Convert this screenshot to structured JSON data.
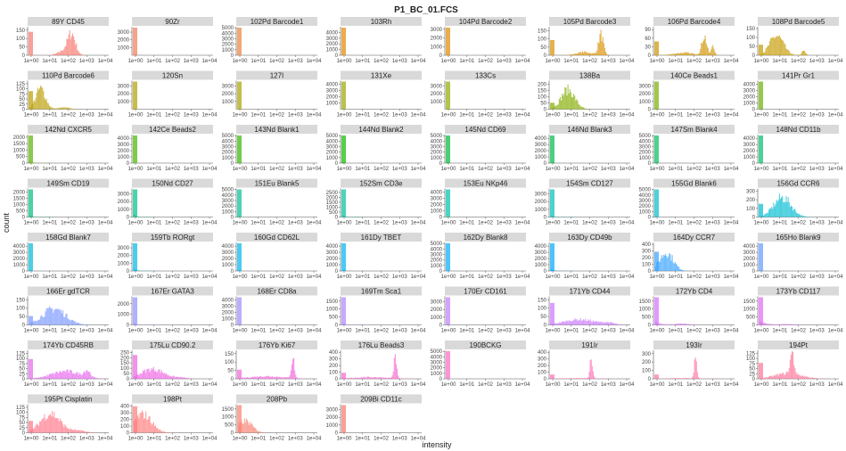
{
  "chart_data": {
    "type": "histogram-facets",
    "title": "P1_BC_01.FCS",
    "xlabel": "intensity",
    "ylabel": "count",
    "x_scale": "log10",
    "x_ticks": [
      "1e+00",
      "1e+01",
      "1e+02",
      "1e+03",
      "1e+04"
    ],
    "panels": [
      {
        "name": "89Y  CD45",
        "color": "#F8766D",
        "yticks": [
          0,
          50,
          100,
          150
        ],
        "ymax": 170,
        "profile": "cd45"
      },
      {
        "name": "90Zr",
        "color": "#F37B59",
        "yticks": [
          1000,
          2000,
          3000
        ],
        "ymax": 3700,
        "profile": "zero"
      },
      {
        "name": "102Pd  Barcode1",
        "color": "#ED813E",
        "yticks": [
          0,
          1000,
          2000,
          3000,
          4000,
          5000
        ],
        "ymax": 5200,
        "profile": "zero"
      },
      {
        "name": "103Rh",
        "color": "#E58700",
        "yticks": [
          0,
          1000,
          2000,
          3000,
          4000
        ],
        "ymax": 5000,
        "profile": "zero"
      },
      {
        "name": "104Pd  Barcode2",
        "color": "#DE8C00",
        "yticks": [
          0,
          1000,
          2000,
          3000
        ],
        "ymax": 3300,
        "profile": "zero"
      },
      {
        "name": "105Pd  Barcode3",
        "color": "#D89000",
        "yticks": [
          0,
          50,
          100,
          150
        ],
        "ymax": 175,
        "profile": "bc3"
      },
      {
        "name": "106Pd  Barcode4",
        "color": "#CF9400",
        "yticks": [
          0,
          30,
          60,
          90
        ],
        "ymax": 100,
        "profile": "bc4"
      },
      {
        "name": "108Pd  Barcode5",
        "color": "#C49A00",
        "yticks": [
          0,
          50,
          100,
          150
        ],
        "ymax": 160,
        "profile": "bc5"
      },
      {
        "name": "110Pd  Barcode6",
        "color": "#BB9D00",
        "yticks": [
          0,
          25,
          50,
          75,
          100,
          125
        ],
        "ymax": 140,
        "profile": "bc6"
      },
      {
        "name": "120Sn",
        "color": "#B2A100",
        "yticks": [
          1000,
          2000,
          3000
        ],
        "ymax": 3700,
        "profile": "zero"
      },
      {
        "name": "127I",
        "color": "#A8A400",
        "yticks": [
          1000,
          2000,
          3000
        ],
        "ymax": 3700,
        "profile": "zero"
      },
      {
        "name": "131Xe",
        "color": "#9DA700",
        "yticks": [
          1000,
          2000,
          3000,
          4000
        ],
        "ymax": 4600,
        "profile": "zero"
      },
      {
        "name": "133Cs",
        "color": "#93AA00",
        "yticks": [
          1000,
          2000,
          3000
        ],
        "ymax": 3700,
        "profile": "zero"
      },
      {
        "name": "138Ba",
        "color": "#85AD00",
        "yticks": [
          0,
          50,
          100,
          150,
          200
        ],
        "ymax": 230,
        "profile": "ba"
      },
      {
        "name": "140Ce  Beads1",
        "color": "#78B000",
        "yticks": [
          0,
          1000,
          2000,
          3000
        ],
        "ymax": 3700,
        "profile": "zero"
      },
      {
        "name": "141Pr  Gr1",
        "color": "#6BB100",
        "yticks": [
          0,
          1000,
          2000,
          3000,
          4000
        ],
        "ymax": 4600,
        "profile": "zero"
      },
      {
        "name": "142Nd  CXCR5",
        "color": "#5BB300",
        "yticks": [
          0,
          500,
          1000,
          1500,
          2000
        ],
        "ymax": 2200,
        "profile": "lowdecay"
      },
      {
        "name": "142Ce  Beads2",
        "color": "#49B500",
        "yticks": [
          0,
          1000,
          2000,
          3000,
          4000
        ],
        "ymax": 4600,
        "profile": "zero"
      },
      {
        "name": "143Nd  Blank1",
        "color": "#35B700",
        "yticks": [
          0,
          1000,
          2000,
          3000,
          4000,
          5000
        ],
        "ymax": 5200,
        "profile": "zero"
      },
      {
        "name": "144Nd  Blank2",
        "color": "#13B800",
        "yticks": [
          0,
          1000,
          2000,
          3000,
          4000,
          5000
        ],
        "ymax": 5200,
        "profile": "zero"
      },
      {
        "name": "145Nd  CD69",
        "color": "#00BA38",
        "yticks": [
          0,
          1000,
          2000,
          3000,
          4000,
          5000
        ],
        "ymax": 5200,
        "profile": "zero"
      },
      {
        "name": "146Nd  Blank3",
        "color": "#00BB4E",
        "yticks": [
          0,
          1000,
          2000,
          3000,
          4000
        ],
        "ymax": 4600,
        "profile": "zero"
      },
      {
        "name": "147Sm  Blank4",
        "color": "#00BD5F",
        "yticks": [
          0,
          1000,
          2000,
          3000,
          4000,
          5000
        ],
        "ymax": 5200,
        "profile": "zero"
      },
      {
        "name": "148Nd  CD11b",
        "color": "#00BE6E",
        "yticks": [
          0,
          1000,
          2000,
          3000,
          4000
        ],
        "ymax": 4600,
        "profile": "zero"
      },
      {
        "name": "149Sm  CD19",
        "color": "#00BF7C",
        "yticks": [
          0,
          500,
          1000,
          1500,
          2000
        ],
        "ymax": 2300,
        "profile": "lowdecay"
      },
      {
        "name": "150Nd  CD27",
        "color": "#00C089",
        "yticks": [
          0,
          1000,
          2000,
          3000
        ],
        "ymax": 3700,
        "profile": "lowdecay"
      },
      {
        "name": "151Eu  Blank5",
        "color": "#00C096",
        "yticks": [
          0,
          1000,
          2000,
          3000,
          4000,
          5000
        ],
        "ymax": 5200,
        "profile": "zero"
      },
      {
        "name": "152Sm  CD3e",
        "color": "#00C1A3",
        "yticks": [
          0,
          500,
          1000,
          1500,
          2000,
          2500
        ],
        "ymax": 2900,
        "profile": "lowdecay"
      },
      {
        "name": "153Eu  NKp46",
        "color": "#00C0AF",
        "yticks": [
          0,
          1000,
          2000,
          3000,
          4000
        ],
        "ymax": 4600,
        "profile": "zero"
      },
      {
        "name": "154Sm  CD127",
        "color": "#00BFBA",
        "yticks": [
          0,
          1000,
          2000,
          3000
        ],
        "ymax": 3700,
        "profile": "lowdecay"
      },
      {
        "name": "155Gd  Blank6",
        "color": "#00BEC6",
        "yticks": [
          0,
          1000,
          2000,
          3000,
          4000,
          5000
        ],
        "ymax": 5200,
        "profile": "zero"
      },
      {
        "name": "156Gd  CCR6",
        "color": "#00BCD1",
        "yticks": [
          0,
          100,
          200,
          300
        ],
        "ymax": 330,
        "profile": "ccr6"
      },
      {
        "name": "158Gd  Blank7",
        "color": "#00BBDA",
        "yticks": [
          0,
          1000,
          2000,
          3000,
          4000
        ],
        "ymax": 4600,
        "profile": "zero"
      },
      {
        "name": "159Tb  RORgt",
        "color": "#00B8E4",
        "yticks": [
          0,
          1000,
          2000,
          3000
        ],
        "ymax": 3700,
        "profile": "lowdecay"
      },
      {
        "name": "160Gd  CD62L",
        "color": "#00B5EC",
        "yticks": [
          0,
          1000,
          2000,
          3000,
          4000
        ],
        "ymax": 4600,
        "profile": "zero"
      },
      {
        "name": "161Dy  TBET",
        "color": "#00B2F3",
        "yticks": [
          0,
          1000,
          2000,
          3000,
          4000
        ],
        "ymax": 4600,
        "profile": "zero"
      },
      {
        "name": "162Dy  Blank8",
        "color": "#00AEFA",
        "yticks": [
          0,
          1000,
          2000,
          3000,
          4000,
          5000
        ],
        "ymax": 5200,
        "profile": "zero"
      },
      {
        "name": "163Dy  CD49b",
        "color": "#00AAFE",
        "yticks": [
          0,
          1000,
          2000,
          3000,
          4000
        ],
        "ymax": 4600,
        "profile": "lowdecay"
      },
      {
        "name": "164Dy  CCR7",
        "color": "#35A2FF",
        "yticks": [
          0,
          100,
          200,
          300,
          400
        ],
        "ymax": 430,
        "profile": "ccr7"
      },
      {
        "name": "165Ho  Blank9",
        "color": "#619CFF",
        "yticks": [
          0,
          1000,
          2000,
          3000,
          4000
        ],
        "ymax": 4600,
        "profile": "zero"
      },
      {
        "name": "166Er  gdTCR",
        "color": "#7997FF",
        "yticks": [
          0,
          50,
          100,
          150
        ],
        "ymax": 170,
        "profile": "gdtcr"
      },
      {
        "name": "167Er  GATA3",
        "color": "#8F91FF",
        "yticks": [
          0,
          1000,
          2000
        ],
        "ymax": 2700,
        "profile": "lowdecay"
      },
      {
        "name": "168Er  CD8a",
        "color": "#A18AFF",
        "yticks": [
          0,
          1000,
          2000,
          3000,
          4000
        ],
        "ymax": 4600,
        "profile": "zero"
      },
      {
        "name": "169Tm  Sca1",
        "color": "#B283FF",
        "yticks": [
          0,
          500,
          1000,
          1500
        ],
        "ymax": 1800,
        "profile": "lowdecay"
      },
      {
        "name": "170Er  CD161",
        "color": "#C17DFF",
        "yticks": [
          0,
          1000,
          2000,
          3000
        ],
        "ymax": 3700,
        "profile": "zero"
      },
      {
        "name": "171Yb  CD44",
        "color": "#CC75FF",
        "yticks": [
          0,
          50,
          100,
          150
        ],
        "ymax": 170,
        "profile": "cd44"
      },
      {
        "name": "172Yb  CD4",
        "color": "#D66DFE",
        "yticks": [
          0,
          500,
          1000,
          1500
        ],
        "ymax": 1800,
        "profile": "cd4"
      },
      {
        "name": "173Yb  CD117",
        "color": "#E068F6",
        "yticks": [
          0,
          500,
          1000,
          1500
        ],
        "ymax": 1800,
        "profile": "cd117"
      },
      {
        "name": "174Yb  CD45RB",
        "color": "#E766EE",
        "yticks": [
          0,
          25,
          50,
          75,
          100,
          125
        ],
        "ymax": 140,
        "profile": "cd45rb"
      },
      {
        "name": "175Lu  CD90.2",
        "color": "#EE63E4",
        "yticks": [
          0,
          50,
          100,
          150,
          200,
          250
        ],
        "ymax": 270,
        "profile": "cd90"
      },
      {
        "name": "176Yb  Ki67",
        "color": "#F464DA",
        "yticks": [
          0,
          50,
          100,
          150
        ],
        "ymax": 170,
        "profile": "ki67"
      },
      {
        "name": "176Lu  Beads3",
        "color": "#F866CD",
        "yticks": [
          0,
          100,
          200,
          300,
          400
        ],
        "ymax": 430,
        "profile": "beads3"
      },
      {
        "name": "190BCKG",
        "color": "#FB69C0",
        "yticks": [
          0,
          1000,
          2000,
          3000,
          4000,
          5000
        ],
        "ymax": 5200,
        "profile": "zero"
      },
      {
        "name": "191Ir",
        "color": "#FD6DB2",
        "yticks": [
          0,
          100,
          200,
          300,
          400
        ],
        "ymax": 430,
        "profile": "ir"
      },
      {
        "name": "193Ir",
        "color": "#FE71A4",
        "yticks": [
          0,
          100,
          200,
          300
        ],
        "ymax": 340,
        "profile": "ir"
      },
      {
        "name": "194Pt",
        "color": "#FE7497",
        "yticks": [
          0,
          25,
          50,
          75,
          100,
          125
        ],
        "ymax": 140,
        "profile": "pt194"
      },
      {
        "name": "195Pt  Cisplatin",
        "color": "#FF7588",
        "yticks": [
          0,
          25,
          50,
          75,
          100,
          125
        ],
        "ymax": 140,
        "profile": "cispt"
      },
      {
        "name": "198Pt",
        "color": "#FF7A7A",
        "yticks": [
          0,
          100,
          200,
          300,
          400
        ],
        "ymax": 430,
        "profile": "pt198"
      },
      {
        "name": "208Pb",
        "color": "#FA7F71",
        "yticks": [
          0,
          500,
          1000,
          1500
        ],
        "ymax": 1800,
        "profile": "pb"
      },
      {
        "name": "209Bi  CD11c",
        "color": "#F8766D",
        "yticks": [
          0,
          1000,
          2000,
          3000
        ],
        "ymax": 3700,
        "profile": "zero"
      }
    ]
  }
}
